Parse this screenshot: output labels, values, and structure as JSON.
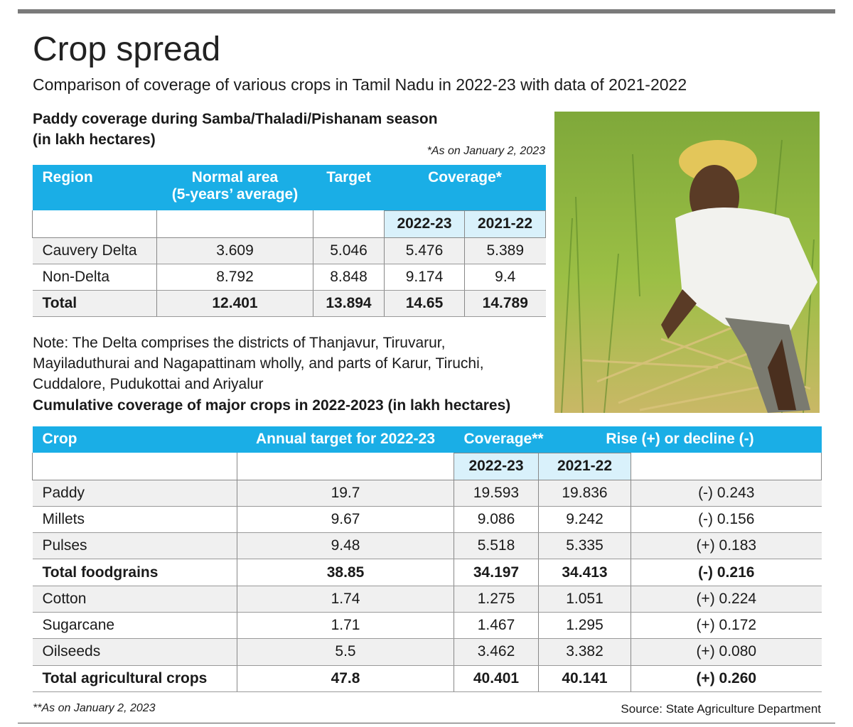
{
  "header": {
    "title": "Crop spread",
    "subtitle": "Comparison of coverage of various crops in Tamil Nadu in 2022-23 with data of 2021-2022"
  },
  "paddy": {
    "heading": "Paddy coverage during Samba/Thaladi/Pishanam season",
    "unit": "(in lakh hectares)",
    "footnote": "*As on January 2, 2023",
    "headers": [
      "Region",
      "Normal area\n(5-years’ average)",
      "Target",
      "Coverage*"
    ],
    "subheaders": [
      "2022-23",
      "2021-22"
    ],
    "rows": [
      [
        "Cauvery Delta",
        "3.609",
        "5.046",
        "5.476",
        "5.389"
      ],
      [
        "Non-Delta",
        "8.792",
        "8.848",
        "9.174",
        "9.4"
      ],
      [
        "Total",
        "12.401",
        "13.894",
        "14.65",
        "14.789"
      ]
    ]
  },
  "note": "Note: The Delta comprises the districts of Thanjavur, Tiruvarur, Mayiladuthurai and Nagapattinam wholly, and parts of Karur, Tiruchi, Cuddalore, Pudukottai and Ariyalur",
  "crops": {
    "heading": "Cumulative coverage of major crops in 2022-2023 (in lakh hectares)",
    "headers": [
      "Crop",
      "Annual target for 2022-23",
      "Coverage**",
      "Rise (+) or decline (-)"
    ],
    "subheaders": [
      "2022-23",
      "2021-22"
    ],
    "rows": [
      [
        "Paddy",
        "19.7",
        "19.593",
        "19.836",
        "(-) 0.243"
      ],
      [
        "Millets",
        "9.67",
        "9.086",
        "9.242",
        "(-) 0.156"
      ],
      [
        "Pulses",
        "9.48",
        "5.518",
        "5.335",
        "(+) 0.183"
      ],
      [
        "Total foodgrains",
        "38.85",
        "34.197",
        "34.413",
        "(-) 0.216"
      ],
      [
        "Cotton",
        "1.74",
        "1.275",
        "1.051",
        "(+) 0.224"
      ],
      [
        "Sugarcane",
        "1.71",
        "1.467",
        "1.295",
        "(+) 0.172"
      ],
      [
        "Oilseeds",
        "5.5",
        "3.462",
        "3.382",
        "(+) 0.080"
      ],
      [
        "Total agricultural crops",
        "47.8",
        "40.401",
        "40.141",
        "(+) 0.260"
      ]
    ]
  },
  "footer": {
    "footnote": "**As on January 2, 2023",
    "source": "Source: State Agriculture Department"
  }
}
